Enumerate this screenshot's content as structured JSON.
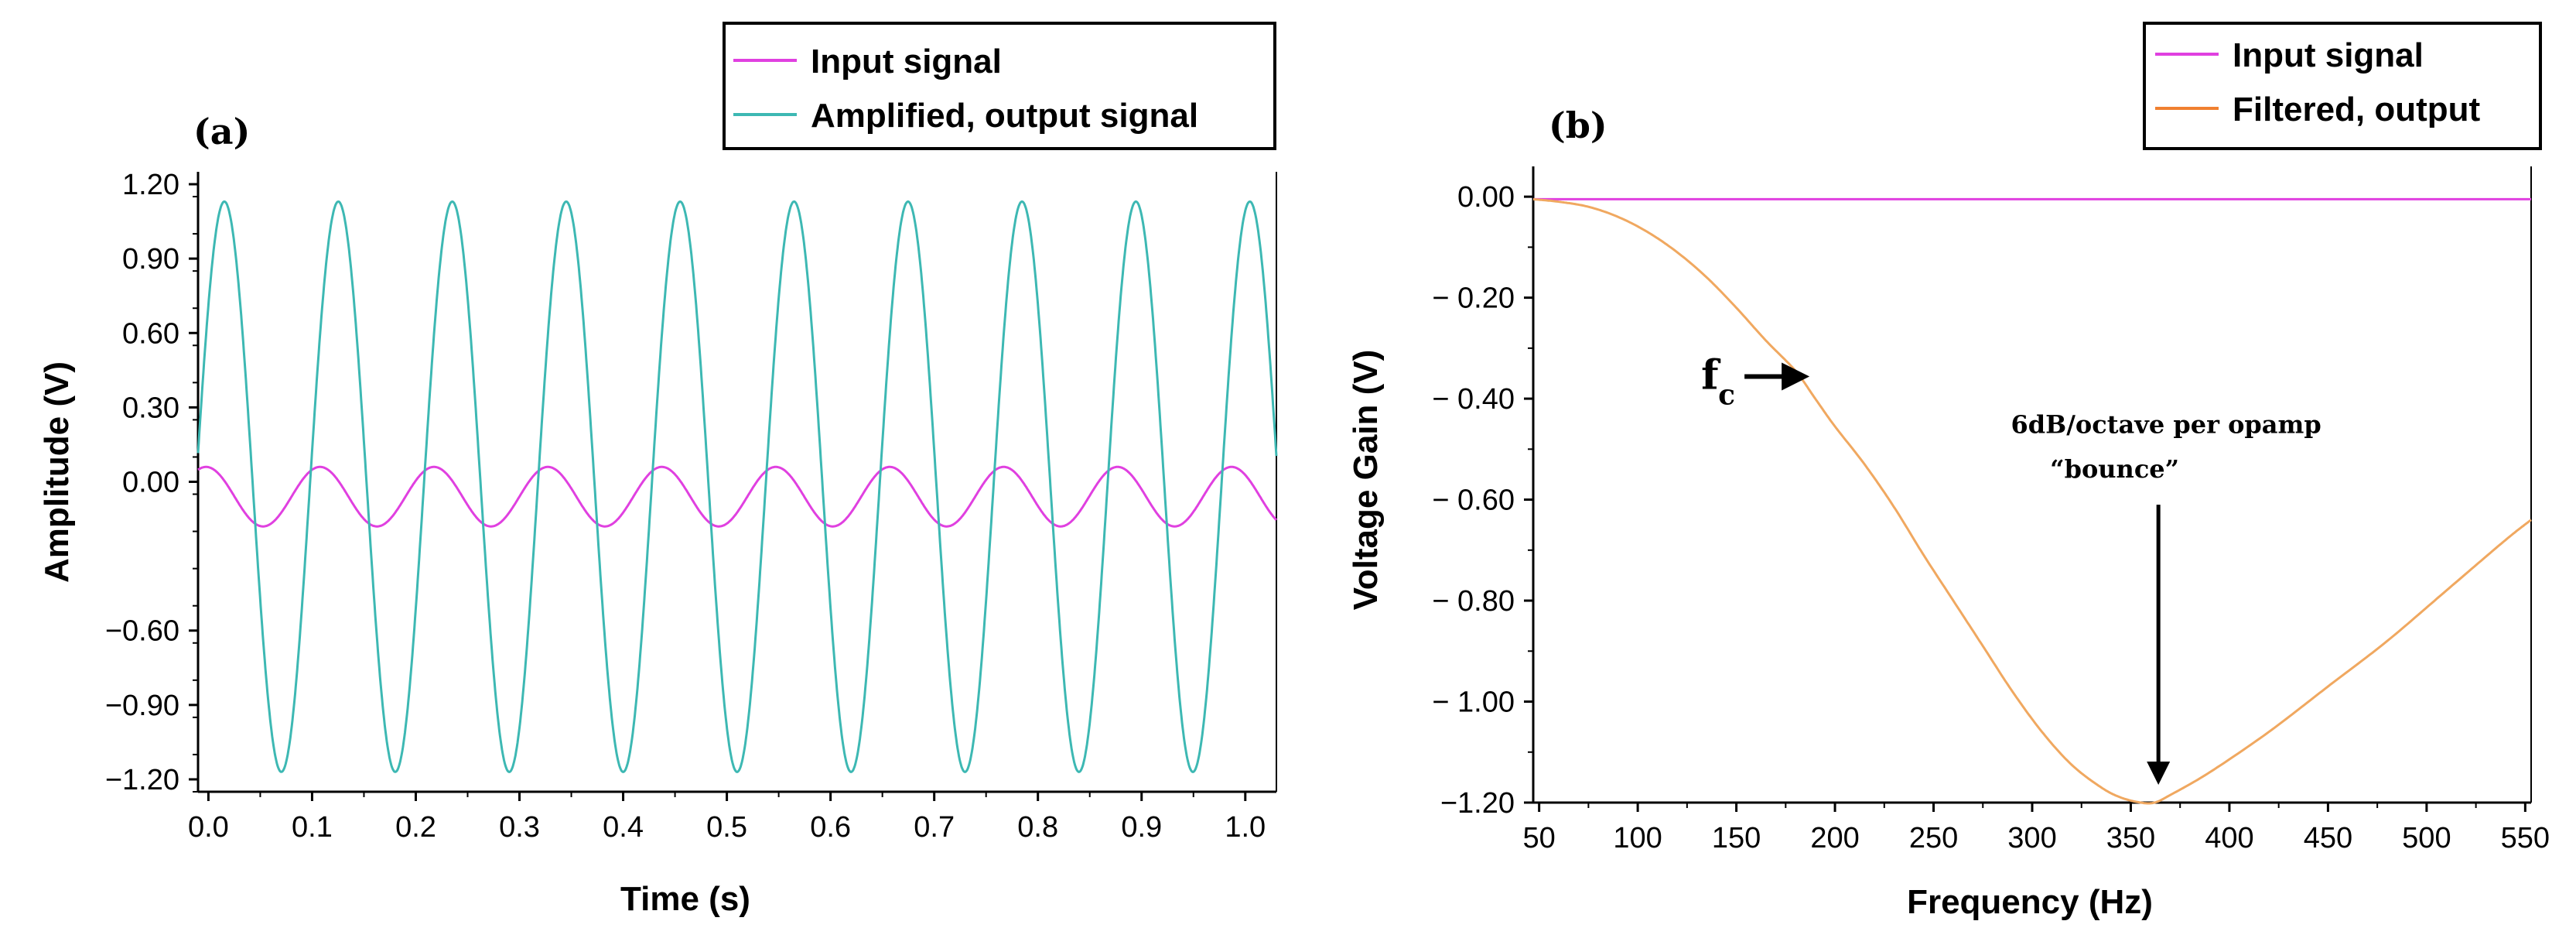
{
  "chart_data": [
    {
      "type": "line",
      "panel_label": "(a)",
      "xlabel": "Time (s)",
      "ylabel": "Amplitude  (V)",
      "xlim": [
        -0.01,
        1.03
      ],
      "ylim": [
        -1.25,
        1.25
      ],
      "x_ticks": [
        0.0,
        0.1,
        0.2,
        0.3,
        0.4,
        0.5,
        0.6,
        0.7,
        0.8,
        0.9,
        1.0
      ],
      "x_tick_labels": [
        "0.0",
        "0.1",
        "0.2",
        "0.3",
        "0.4",
        "0.5",
        "0.6",
        "0.7",
        "0.8",
        "0.9",
        "1.0"
      ],
      "y_ticks": [
        1.2,
        0.9,
        0.6,
        0.3,
        0.0,
        -0.6,
        -0.9,
        -1.2
      ],
      "y_tick_labels": [
        "1.20",
        "0.90",
        "0.60",
        "0.30",
        "0.00",
        "−0.60",
        "−0.90",
        "−1.20"
      ],
      "legend": [
        "Input signal",
        "Amplified, output signal"
      ],
      "series": [
        {
          "name": "Input signal",
          "color": "#e040e0",
          "function": "sine",
          "amplitude": 0.12,
          "offset": -0.06,
          "frequency": 9.1,
          "phase": 1.7
        },
        {
          "name": "Amplified, output signal",
          "color": "#3db8b3",
          "function": "sine",
          "amplitude": 1.15,
          "offset": -0.02,
          "frequency": 9.1,
          "phase": 0.69
        }
      ]
    },
    {
      "type": "line",
      "panel_label": "(b)",
      "xlabel": "Frequency (Hz)",
      "ylabel": "Voltage Gain (V)",
      "xlim": [
        47,
        553
      ],
      "ylim": [
        -1.2,
        0.06
      ],
      "x_ticks": [
        50,
        100,
        150,
        200,
        250,
        300,
        350,
        400,
        450,
        500,
        550
      ],
      "x_tick_labels": [
        "50",
        "100",
        "150",
        "200",
        "250",
        "300",
        "350",
        "400",
        "450",
        "500",
        "550"
      ],
      "y_ticks": [
        0.0,
        -0.2,
        -0.4,
        -0.6,
        -0.8,
        -1.0,
        -1.2
      ],
      "y_tick_labels": [
        "0.00",
        "− 0.20",
        "− 0.40",
        "− 0.60",
        "− 0.80",
        "− 1.00",
        "−1.20"
      ],
      "legend": [
        "Input signal",
        "Filtered, output"
      ],
      "series": [
        {
          "name": "Input signal",
          "color": "#e040e0",
          "x": [
            47,
            553
          ],
          "y": [
            -0.005,
            -0.005
          ]
        },
        {
          "name": "Filtered, output",
          "color": "#f0a860",
          "x": [
            47,
            60,
            75,
            90,
            105,
            120,
            135,
            150,
            165,
            180,
            190,
            200,
            215,
            230,
            245,
            260,
            275,
            290,
            305,
            320,
            335,
            345,
            355,
            362,
            370,
            390,
            420,
            450,
            480,
            510,
            540,
            553
          ],
          "y": [
            -0.005,
            -0.01,
            -0.02,
            -0.04,
            -0.07,
            -0.11,
            -0.16,
            -0.22,
            -0.285,
            -0.345,
            -0.4,
            -0.455,
            -0.53,
            -0.615,
            -0.71,
            -0.8,
            -0.89,
            -0.98,
            -1.06,
            -1.125,
            -1.17,
            -1.19,
            -1.2,
            -1.2,
            -1.185,
            -1.14,
            -1.06,
            -0.97,
            -0.88,
            -0.78,
            -0.68,
            -0.64
          ]
        }
      ],
      "annotations": {
        "fc_label": "f",
        "fc_subscript": "c",
        "fc_point": [
          191,
          -0.35
        ],
        "bounce_line1": "6dB/octave per opamp",
        "bounce_line2": "“bounce”",
        "bounce_point": [
          364,
          -1.2
        ]
      }
    }
  ]
}
